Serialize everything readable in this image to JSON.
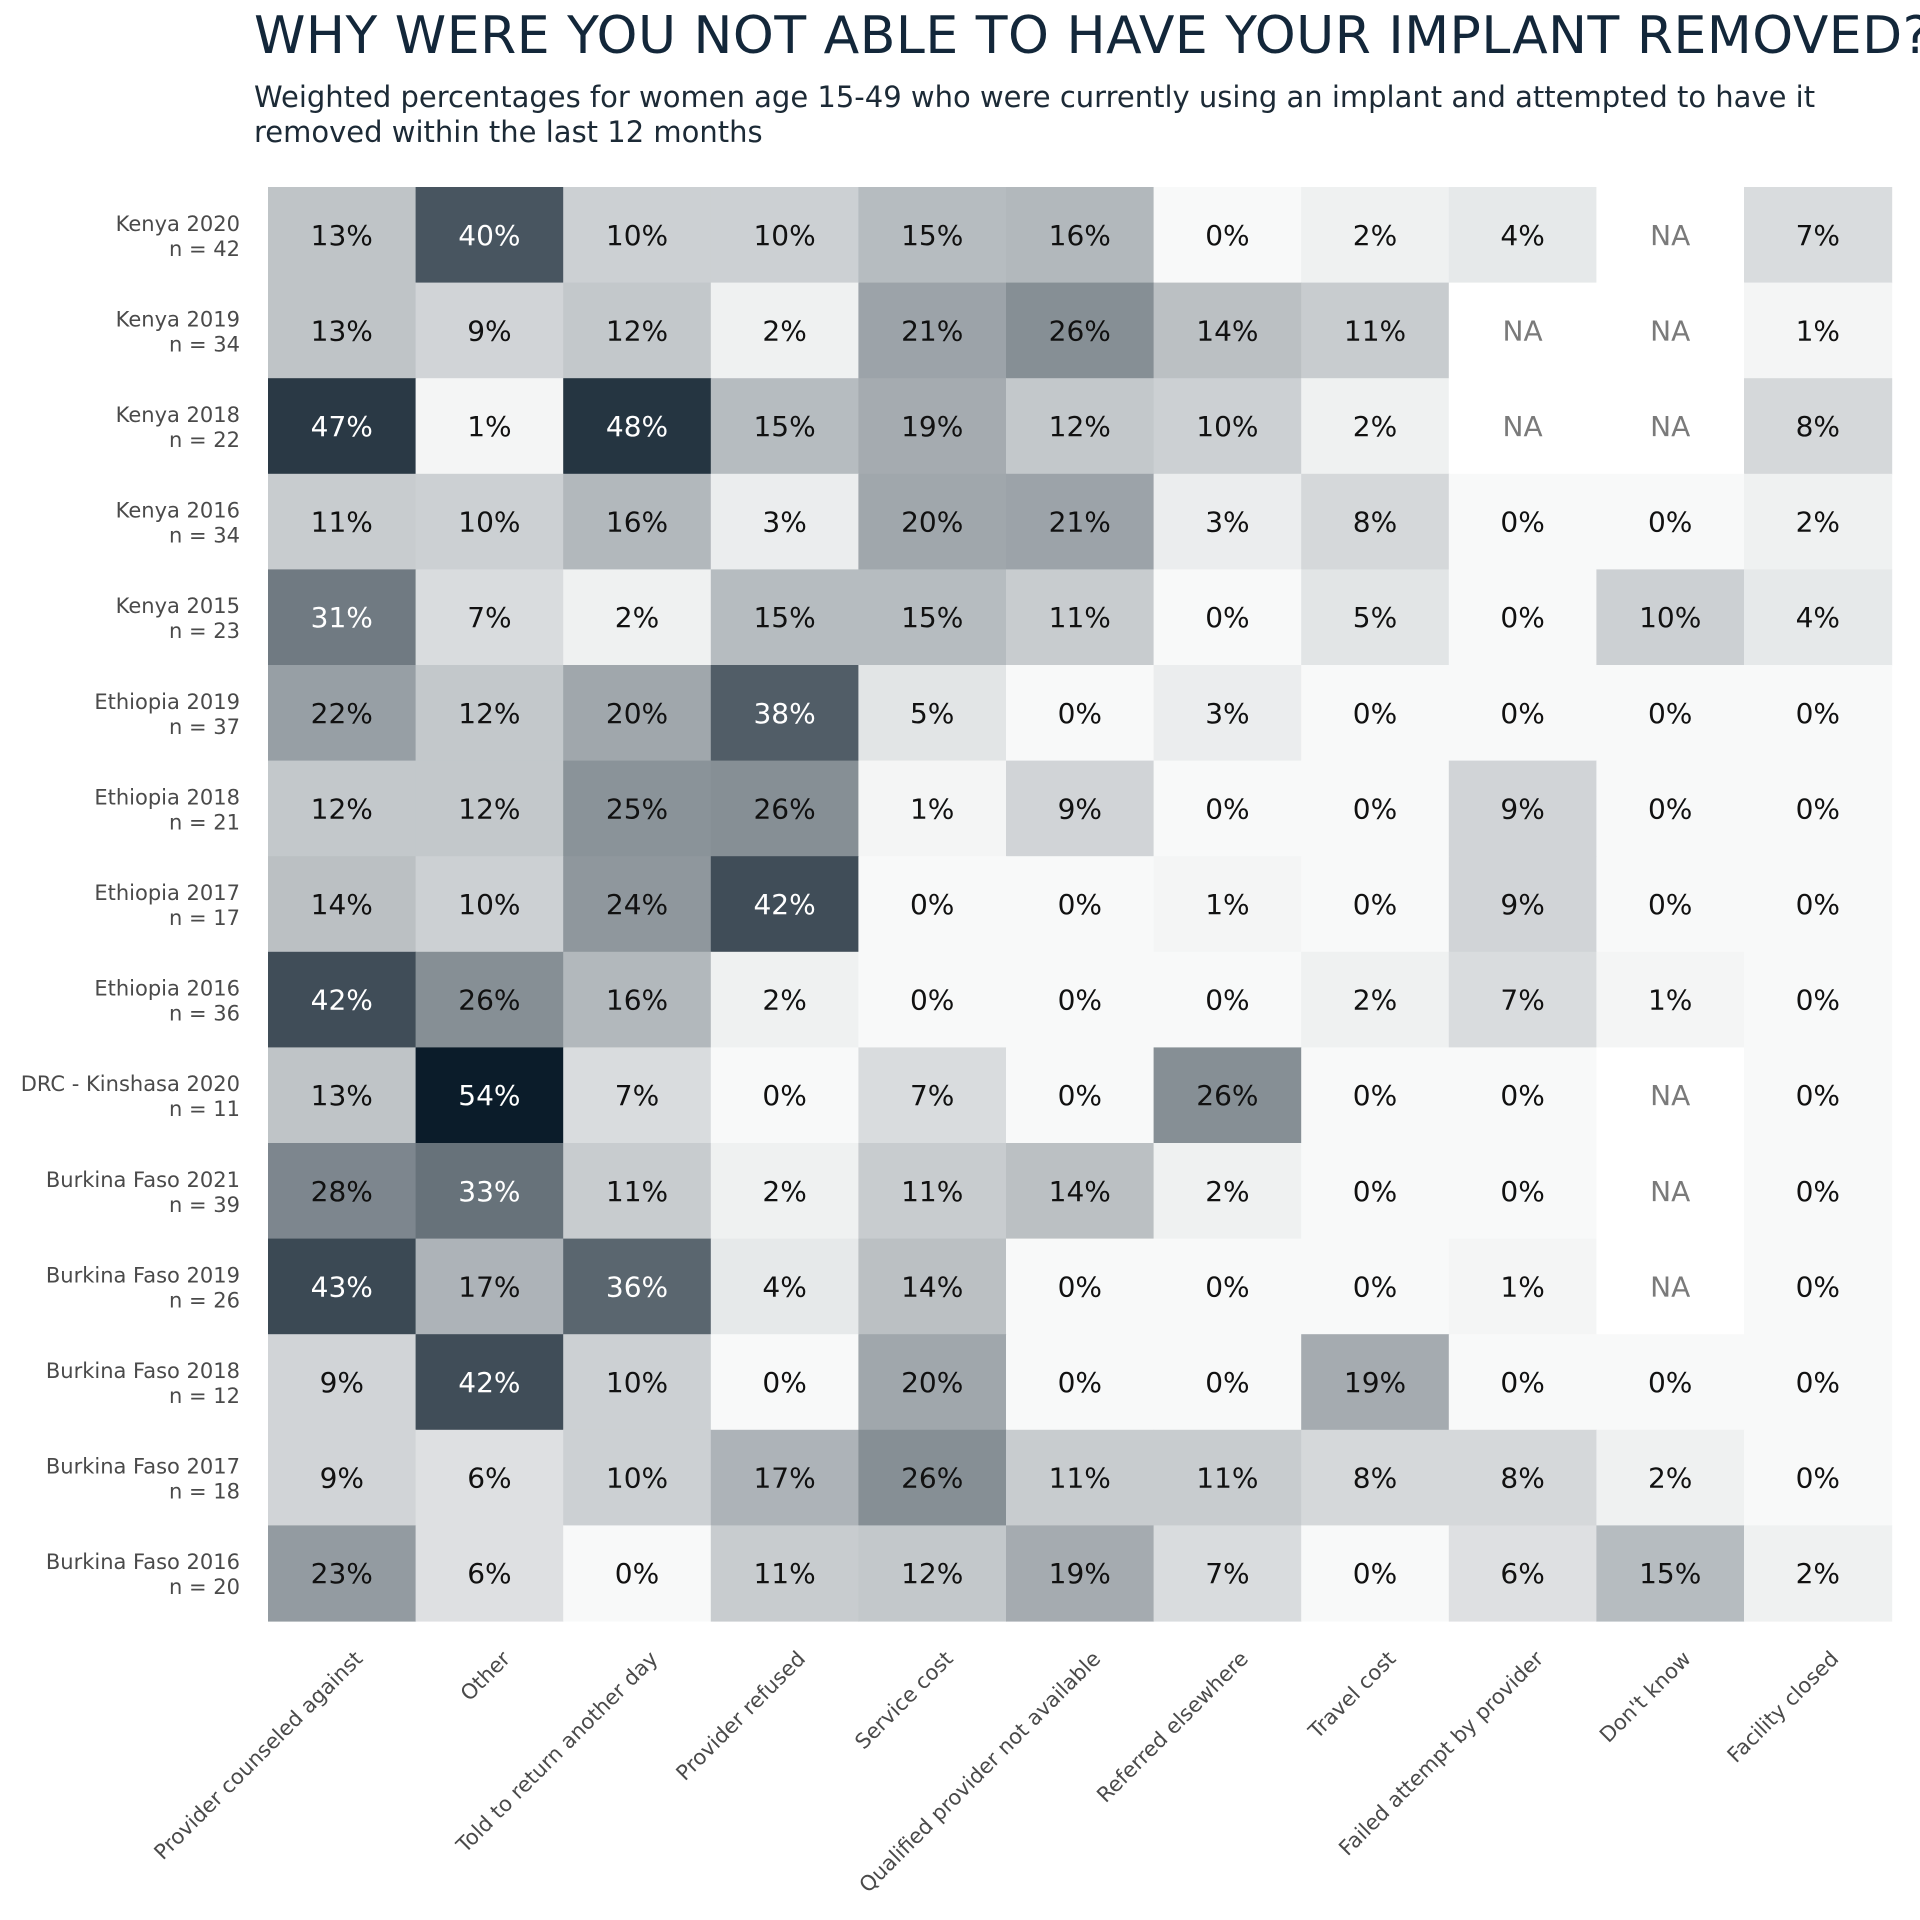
{
  "chart_data": {
    "type": "heatmap",
    "title": "WHY WERE YOU NOT ABLE TO HAVE YOUR IMPLANT REMOVED?",
    "subtitle": "Weighted percentages for women age 15-49 who were currently using an implant and attempted to have it removed within the last 12 months",
    "rows": [
      {
        "label": "Kenya 2020",
        "n": "n = 42"
      },
      {
        "label": "Kenya 2019",
        "n": "n = 34"
      },
      {
        "label": "Kenya 2018",
        "n": "n = 22"
      },
      {
        "label": "Kenya 2016",
        "n": "n = 34"
      },
      {
        "label": "Kenya 2015",
        "n": "n = 23"
      },
      {
        "label": "Ethiopia 2019",
        "n": "n = 37"
      },
      {
        "label": "Ethiopia 2018",
        "n": "n = 21"
      },
      {
        "label": "Ethiopia 2017",
        "n": "n = 17"
      },
      {
        "label": "Ethiopia 2016",
        "n": "n = 36"
      },
      {
        "label": "DRC - Kinshasa 2020",
        "n": "n = 11"
      },
      {
        "label": "Burkina Faso 2021",
        "n": "n = 39"
      },
      {
        "label": "Burkina Faso 2019",
        "n": "n = 26"
      },
      {
        "label": "Burkina Faso 2018",
        "n": "n = 12"
      },
      {
        "label": "Burkina Faso 2017",
        "n": "n = 18"
      },
      {
        "label": "Burkina Faso 2016",
        "n": "n = 20"
      }
    ],
    "columns": [
      "Provider counseled against",
      "Other",
      "Told to return another day",
      "Provider refused",
      "Service cost",
      "Qualified provider not available",
      "Referred elsewhere",
      "Travel cost",
      "Failed attempt by provider",
      "Don't know",
      "Facility closed"
    ],
    "values": [
      [
        13,
        40,
        10,
        10,
        15,
        16,
        0,
        2,
        4,
        null,
        7
      ],
      [
        13,
        9,
        12,
        2,
        21,
        26,
        14,
        11,
        null,
        null,
        1
      ],
      [
        47,
        1,
        48,
        15,
        19,
        12,
        10,
        2,
        null,
        null,
        8
      ],
      [
        11,
        10,
        16,
        3,
        20,
        21,
        3,
        8,
        0,
        0,
        2
      ],
      [
        31,
        7,
        2,
        15,
        15,
        11,
        0,
        5,
        0,
        10,
        4
      ],
      [
        22,
        12,
        20,
        38,
        5,
        0,
        3,
        0,
        0,
        0,
        0
      ],
      [
        12,
        12,
        25,
        26,
        1,
        9,
        0,
        0,
        9,
        0,
        0
      ],
      [
        14,
        10,
        24,
        42,
        0,
        0,
        1,
        0,
        9,
        0,
        0
      ],
      [
        42,
        26,
        16,
        2,
        0,
        0,
        0,
        2,
        7,
        1,
        0
      ],
      [
        13,
        54,
        7,
        0,
        7,
        0,
        26,
        0,
        0,
        null,
        0
      ],
      [
        28,
        33,
        11,
        2,
        11,
        14,
        2,
        0,
        0,
        null,
        0
      ],
      [
        43,
        17,
        36,
        4,
        14,
        0,
        0,
        0,
        1,
        null,
        0
      ],
      [
        9,
        42,
        10,
        0,
        20,
        0,
        0,
        19,
        0,
        0,
        0
      ],
      [
        9,
        6,
        10,
        17,
        26,
        11,
        11,
        8,
        8,
        2,
        0
      ],
      [
        23,
        6,
        0,
        11,
        12,
        19,
        7,
        0,
        6,
        15,
        2
      ]
    ],
    "na_label": "NA",
    "value_suffix": "%",
    "value_range": [
      0,
      54
    ],
    "colors": {
      "low": "#f8f9f9",
      "high": "#0b1c2a",
      "text_dark": "#111111",
      "text_light": "#ffffff",
      "text_na": "#7a7a7a",
      "na_fill": "#ffffff"
    }
  }
}
